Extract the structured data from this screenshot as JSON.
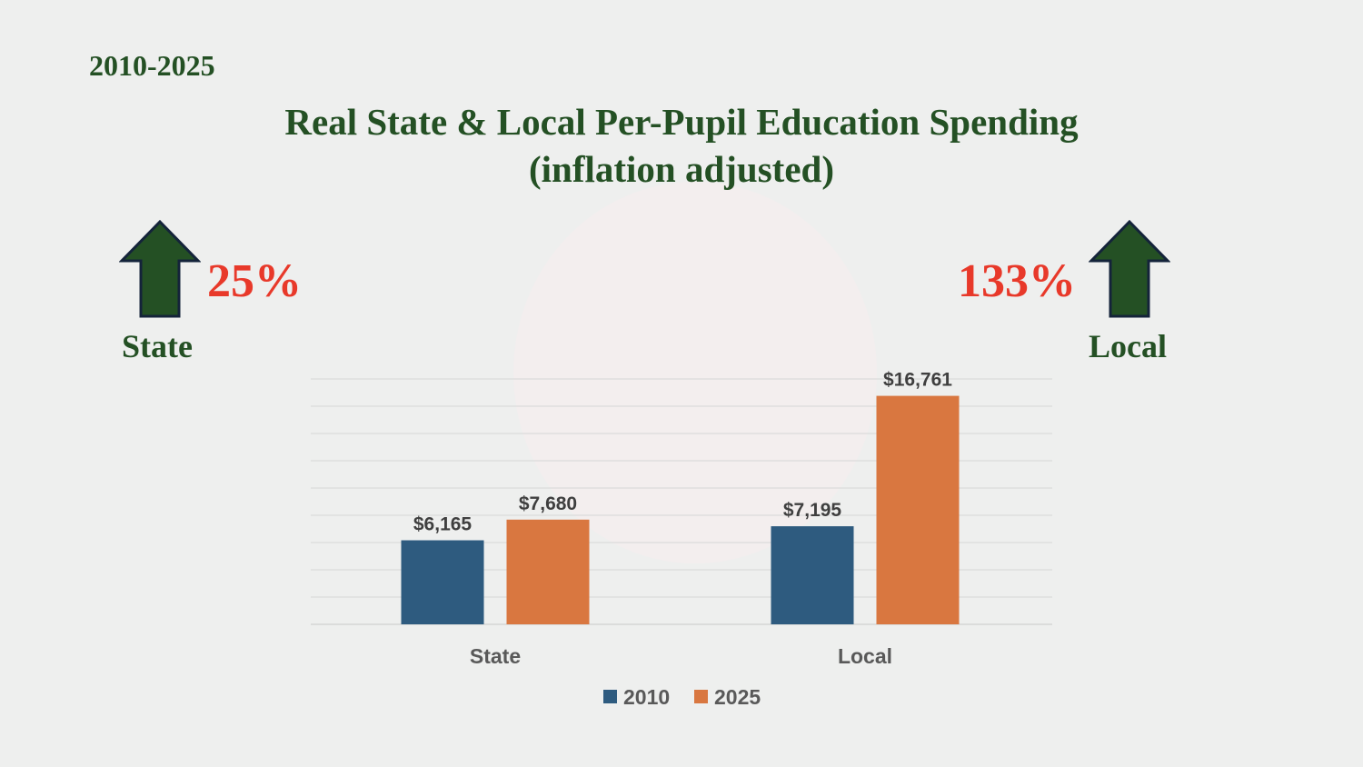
{
  "header": {
    "period": "2010-2025",
    "title_line1": "Real State & Local Per-Pupil Education Spending",
    "title_line2": "(inflation adjusted)"
  },
  "callouts": {
    "state": {
      "percent": "25%",
      "label": "State",
      "icon": "arrow-up-icon"
    },
    "local": {
      "percent": "133%",
      "label": "Local",
      "icon": "arrow-up-icon"
    }
  },
  "colors": {
    "s2010": "#2e5b7f",
    "s2025": "#d97740",
    "green": "#245024",
    "red": "#e8392a"
  },
  "chart_data": {
    "type": "bar",
    "categories": [
      "State",
      "Local"
    ],
    "series": [
      {
        "name": "2010",
        "values": [
          6165,
          7195
        ],
        "labels": [
          "$6,165",
          "$7,195"
        ]
      },
      {
        "name": "2025",
        "values": [
          7680,
          16761
        ],
        "labels": [
          "$7,680",
          "$16,761"
        ]
      }
    ],
    "ylim": [
      0,
      18000
    ],
    "ytick_step": 2000,
    "grid": true,
    "legend": "bottom"
  }
}
